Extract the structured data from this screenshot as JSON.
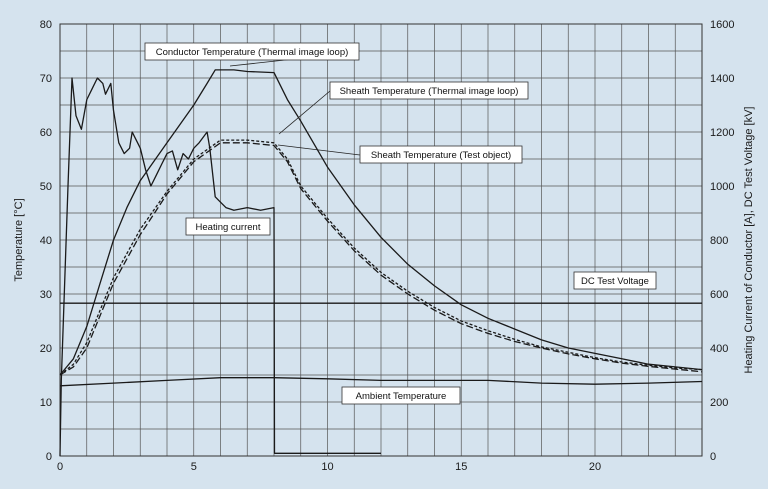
{
  "chart_data": {
    "type": "line",
    "title": "",
    "xlabel": "",
    "ylabel": "Temperature [°C]",
    "y2label": "Heating Current of Conductor [A], DC Test  Voltage [kV]",
    "xlim": [
      0,
      24
    ],
    "ylim": [
      0,
      80
    ],
    "y2lim": [
      0,
      1600
    ],
    "grid": true,
    "legend": "none",
    "x_ticks": [
      0,
      5,
      10,
      15,
      20
    ],
    "x_tick_labels": [
      "0",
      "5",
      "10",
      "15",
      "20"
    ],
    "y_ticks": [
      0,
      10,
      20,
      30,
      40,
      50,
      60,
      70,
      80
    ],
    "y_tick_labels": [
      "0",
      "10",
      "20",
      "30",
      "40",
      "50",
      "60",
      "70",
      "80"
    ],
    "y2_ticks": [
      0,
      200,
      400,
      600,
      800,
      1000,
      1200,
      1400,
      1600
    ],
    "y2_tick_labels": [
      "0",
      "200",
      "400",
      "600",
      "800",
      "1000",
      "1200",
      "1400",
      "1600"
    ],
    "series": [
      {
        "name": "Conductor Temperature (Thermal image loop)",
        "axis": "left",
        "style": "solid",
        "points": [
          [
            0,
            15
          ],
          [
            0.5,
            18
          ],
          [
            1,
            24
          ],
          [
            1.5,
            32
          ],
          [
            2,
            40
          ],
          [
            2.5,
            46
          ],
          [
            3,
            51
          ],
          [
            4,
            58
          ],
          [
            5,
            65
          ],
          [
            5.5,
            69
          ],
          [
            5.8,
            71.5
          ],
          [
            6.5,
            71.5
          ],
          [
            7,
            71.2
          ],
          [
            8,
            71
          ],
          [
            8.5,
            66
          ],
          [
            9,
            62
          ],
          [
            10,
            53.5
          ],
          [
            11,
            46.5
          ],
          [
            12,
            40.5
          ],
          [
            13,
            35.5
          ],
          [
            14,
            31.5
          ],
          [
            15,
            28
          ],
          [
            16,
            25.5
          ],
          [
            17,
            23.5
          ],
          [
            18,
            21.5
          ],
          [
            19,
            20
          ],
          [
            20,
            19
          ],
          [
            21,
            18
          ],
          [
            22,
            17
          ],
          [
            23,
            16.5
          ],
          [
            24,
            16
          ]
        ]
      },
      {
        "name": "Sheath Temperature (Thermal image loop)",
        "axis": "left",
        "style": "short-dash",
        "points": [
          [
            0,
            15
          ],
          [
            0.5,
            17
          ],
          [
            1,
            21
          ],
          [
            1.5,
            27
          ],
          [
            2,
            33
          ],
          [
            3,
            42
          ],
          [
            4,
            49
          ],
          [
            5,
            55
          ],
          [
            6,
            58.5
          ],
          [
            7,
            58.5
          ],
          [
            8,
            58
          ],
          [
            8.5,
            55
          ],
          [
            9,
            50
          ],
          [
            10,
            44
          ],
          [
            11,
            38.5
          ],
          [
            12,
            34
          ],
          [
            13,
            30.5
          ],
          [
            14,
            27.5
          ],
          [
            15,
            25
          ],
          [
            16,
            23.2
          ],
          [
            17,
            21.6
          ],
          [
            18,
            20.2
          ],
          [
            19,
            19.2
          ],
          [
            20,
            18.2
          ],
          [
            21,
            17.4
          ],
          [
            22,
            16.8
          ],
          [
            23,
            16.3
          ],
          [
            24,
            16
          ]
        ]
      },
      {
        "name": "Sheath Temperature (Test object)",
        "axis": "left",
        "style": "long-dash",
        "points": [
          [
            0,
            15
          ],
          [
            0.5,
            16.5
          ],
          [
            1,
            20
          ],
          [
            1.5,
            26
          ],
          [
            2,
            32
          ],
          [
            3,
            41
          ],
          [
            4,
            48.5
          ],
          [
            5,
            54.5
          ],
          [
            6,
            58
          ],
          [
            7,
            58
          ],
          [
            8,
            57.5
          ],
          [
            8.5,
            54.5
          ],
          [
            9,
            49.5
          ],
          [
            10,
            43.5
          ],
          [
            11,
            38
          ],
          [
            12,
            33.5
          ],
          [
            13,
            30
          ],
          [
            14,
            27
          ],
          [
            15,
            24.5
          ],
          [
            16,
            22.7
          ],
          [
            17,
            21.2
          ],
          [
            18,
            20
          ],
          [
            19,
            18.9
          ],
          [
            20,
            18
          ],
          [
            21,
            17.2
          ],
          [
            22,
            16.6
          ],
          [
            23,
            16.1
          ],
          [
            24,
            15.6
          ]
        ]
      },
      {
        "name": "Heating current",
        "axis": "left",
        "style": "solid",
        "points": [
          [
            0,
            0
          ],
          [
            0.05,
            14
          ],
          [
            0.3,
            50
          ],
          [
            0.45,
            70
          ],
          [
            0.6,
            63
          ],
          [
            0.8,
            60.5
          ],
          [
            1,
            66
          ],
          [
            1.2,
            68
          ],
          [
            1.4,
            70
          ],
          [
            1.6,
            69
          ],
          [
            1.7,
            67
          ],
          [
            1.9,
            69
          ],
          [
            2,
            64
          ],
          [
            2.2,
            58
          ],
          [
            2.4,
            56
          ],
          [
            2.6,
            57
          ],
          [
            2.7,
            60
          ],
          [
            2.8,
            59
          ],
          [
            3,
            57
          ],
          [
            3.2,
            53
          ],
          [
            3.4,
            50
          ],
          [
            3.6,
            52
          ],
          [
            3.8,
            54
          ],
          [
            4,
            56
          ],
          [
            4.2,
            56.5
          ],
          [
            4.4,
            53
          ],
          [
            4.6,
            56
          ],
          [
            4.8,
            55
          ],
          [
            5,
            57
          ],
          [
            5.2,
            58
          ],
          [
            5.5,
            60
          ],
          [
            5.6,
            57
          ],
          [
            5.8,
            48
          ],
          [
            6,
            47
          ],
          [
            6.2,
            46
          ],
          [
            6.5,
            45.5
          ],
          [
            7,
            46
          ],
          [
            7.5,
            45.5
          ],
          [
            8,
            46
          ],
          [
            8.02,
            0.5
          ],
          [
            12,
            0.5
          ]
        ]
      },
      {
        "name": "DC Test Voltage",
        "axis": "left",
        "style": "solid",
        "points": [
          [
            0,
            28.3
          ],
          [
            24,
            28.3
          ]
        ]
      },
      {
        "name": "Ambient Temperature",
        "axis": "left",
        "style": "solid",
        "points": [
          [
            0,
            13
          ],
          [
            2,
            13.5
          ],
          [
            4,
            14
          ],
          [
            6,
            14.5
          ],
          [
            8,
            14.5
          ],
          [
            10,
            14.3
          ],
          [
            12,
            14
          ],
          [
            14,
            14
          ],
          [
            16,
            14
          ],
          [
            18,
            13.5
          ],
          [
            20,
            13.3
          ],
          [
            22,
            13.5
          ],
          [
            24,
            13.8
          ]
        ]
      }
    ],
    "annotations": [
      {
        "text": "Conductor Temperature (Thermal image loop)",
        "target": [
          6.5,
          71.5
        ]
      },
      {
        "text": "Sheath Temperature (Thermal image loop)",
        "target": [
          8.2,
          58.5
        ]
      },
      {
        "text": "Sheath Temperature (Test object)",
        "target": [
          8.2,
          57.5
        ]
      },
      {
        "text": "Heating current",
        "target": [
          5.5,
          40
        ]
      },
      {
        "text": "DC Test Voltage",
        "target": [
          20,
          28.3
        ]
      },
      {
        "text": "Ambient Temperature",
        "target": [
          12,
          12.5
        ]
      }
    ]
  },
  "colors": {
    "background": "#d5e3ee",
    "plot_area": "#d5e3ee",
    "line": "#1a1a1a",
    "grid": "#555555"
  }
}
